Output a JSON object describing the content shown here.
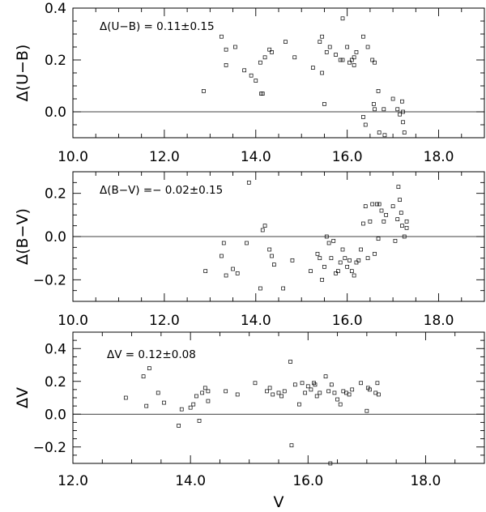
{
  "chart_data": [
    {
      "type": "scatter",
      "ylabel": "Δ(U−B)",
      "xlabel": "",
      "annotation": "Δ(U−B)  =  0.11±0.15",
      "xlim": [
        10.0,
        19.0
      ],
      "ylim": [
        -0.1,
        0.4
      ],
      "xticks": [
        10.0,
        12.0,
        14.0,
        16.0,
        18.0
      ],
      "xtick_labels": [
        "10.0",
        "12.0",
        "14.0",
        "16.0",
        "18.0"
      ],
      "yticks": [
        0.0,
        0.2,
        0.4
      ],
      "ytick_labels": [
        "0.0",
        "0.2",
        "0.4"
      ],
      "zero_line": 0.0,
      "points": [
        [
          12.86,
          0.08
        ],
        [
          13.25,
          0.29
        ],
        [
          13.35,
          0.24
        ],
        [
          13.35,
          0.18
        ],
        [
          13.55,
          0.25
        ],
        [
          13.75,
          0.16
        ],
        [
          13.9,
          0.14
        ],
        [
          14.0,
          0.12
        ],
        [
          14.1,
          0.19
        ],
        [
          14.12,
          0.07
        ],
        [
          14.15,
          0.07
        ],
        [
          14.2,
          0.21
        ],
        [
          14.3,
          0.24
        ],
        [
          14.35,
          0.23
        ],
        [
          14.65,
          0.27
        ],
        [
          14.85,
          0.21
        ],
        [
          15.25,
          0.17
        ],
        [
          15.4,
          0.27
        ],
        [
          15.45,
          0.29
        ],
        [
          15.45,
          0.15
        ],
        [
          15.5,
          0.03
        ],
        [
          15.55,
          0.23
        ],
        [
          15.62,
          0.25
        ],
        [
          15.75,
          0.22
        ],
        [
          15.85,
          0.2
        ],
        [
          15.9,
          0.36
        ],
        [
          15.9,
          0.2
        ],
        [
          16.0,
          0.25
        ],
        [
          16.05,
          0.19
        ],
        [
          16.1,
          0.2
        ],
        [
          16.15,
          0.21
        ],
        [
          16.15,
          0.18
        ],
        [
          16.2,
          0.23
        ],
        [
          16.35,
          0.29
        ],
        [
          16.35,
          -0.02
        ],
        [
          16.4,
          -0.05
        ],
        [
          16.45,
          0.25
        ],
        [
          16.55,
          0.2
        ],
        [
          16.58,
          0.03
        ],
        [
          16.6,
          0.19
        ],
        [
          16.6,
          0.01
        ],
        [
          16.68,
          0.08
        ],
        [
          16.7,
          -0.08
        ],
        [
          16.8,
          0.01
        ],
        [
          16.82,
          -0.09
        ],
        [
          17.0,
          0.05
        ],
        [
          17.1,
          0.01
        ],
        [
          17.15,
          -0.01
        ],
        [
          17.2,
          0.04
        ],
        [
          17.22,
          0.0
        ],
        [
          17.22,
          -0.04
        ],
        [
          17.25,
          -0.08
        ]
      ]
    },
    {
      "type": "scatter",
      "ylabel": "Δ(B−V)",
      "xlabel": "",
      "annotation": "Δ(B−V)  =−  0.02±0.15",
      "xlim": [
        10.0,
        19.0
      ],
      "ylim": [
        -0.3,
        0.3
      ],
      "xticks": [
        10.0,
        12.0,
        14.0,
        16.0,
        18.0
      ],
      "xtick_labels": [
        "10.0",
        "12.0",
        "14.0",
        "16.0",
        "18.0"
      ],
      "yticks": [
        -0.2,
        0.0,
        0.2
      ],
      "ytick_labels": [
        "−0.2",
        "0.0",
        "0.2"
      ],
      "zero_line": 0.0,
      "points": [
        [
          12.9,
          -0.16
        ],
        [
          13.25,
          -0.09
        ],
        [
          13.3,
          -0.03
        ],
        [
          13.35,
          -0.18
        ],
        [
          13.5,
          -0.15
        ],
        [
          13.6,
          -0.17
        ],
        [
          13.8,
          -0.03
        ],
        [
          13.85,
          0.25
        ],
        [
          14.1,
          -0.24
        ],
        [
          14.15,
          0.03
        ],
        [
          14.2,
          0.05
        ],
        [
          14.3,
          -0.06
        ],
        [
          14.35,
          -0.09
        ],
        [
          14.4,
          -0.13
        ],
        [
          14.6,
          -0.24
        ],
        [
          14.8,
          -0.11
        ],
        [
          15.2,
          -0.16
        ],
        [
          15.35,
          -0.08
        ],
        [
          15.4,
          -0.1
        ],
        [
          15.45,
          -0.2
        ],
        [
          15.5,
          -0.14
        ],
        [
          15.55,
          0.0
        ],
        [
          15.6,
          -0.03
        ],
        [
          15.65,
          -0.1
        ],
        [
          15.7,
          -0.02
        ],
        [
          15.75,
          -0.17
        ],
        [
          15.8,
          -0.16
        ],
        [
          15.85,
          -0.12
        ],
        [
          15.9,
          -0.06
        ],
        [
          15.95,
          -0.1
        ],
        [
          16.0,
          -0.14
        ],
        [
          16.05,
          -0.11
        ],
        [
          16.1,
          -0.16
        ],
        [
          16.15,
          -0.18
        ],
        [
          16.2,
          -0.12
        ],
        [
          16.25,
          -0.11
        ],
        [
          16.3,
          -0.06
        ],
        [
          16.35,
          0.06
        ],
        [
          16.4,
          0.14
        ],
        [
          16.45,
          -0.1
        ],
        [
          16.5,
          0.07
        ],
        [
          16.55,
          0.15
        ],
        [
          16.6,
          -0.08
        ],
        [
          16.65,
          0.15
        ],
        [
          16.68,
          -0.01
        ],
        [
          16.7,
          0.15
        ],
        [
          16.75,
          0.12
        ],
        [
          16.8,
          0.07
        ],
        [
          16.85,
          0.1
        ],
        [
          17.0,
          0.14
        ],
        [
          17.05,
          -0.02
        ],
        [
          17.1,
          0.08
        ],
        [
          17.12,
          0.23
        ],
        [
          17.15,
          0.17
        ],
        [
          17.18,
          0.11
        ],
        [
          17.2,
          0.05
        ],
        [
          17.25,
          -0.0
        ],
        [
          17.3,
          0.07
        ],
        [
          17.3,
          0.04
        ]
      ]
    },
    {
      "type": "scatter",
      "ylabel": "ΔV",
      "xlabel": "V",
      "annotation": "ΔV  =  0.12±0.08",
      "xlim": [
        12.0,
        19.0
      ],
      "ylim": [
        -0.3,
        0.5
      ],
      "xticks": [
        12.0,
        14.0,
        16.0,
        18.0
      ],
      "xtick_labels": [
        "12.0",
        "14.0",
        "16.0",
        "18.0"
      ],
      "yticks": [
        -0.2,
        0.0,
        0.2,
        0.4
      ],
      "ytick_labels": [
        "−0.2",
        "0.0",
        "0.2",
        "0.4"
      ],
      "zero_line": 0.0,
      "points": [
        [
          12.9,
          0.1
        ],
        [
          13.2,
          0.23
        ],
        [
          13.25,
          0.05
        ],
        [
          13.3,
          0.28
        ],
        [
          13.45,
          0.13
        ],
        [
          13.55,
          0.07
        ],
        [
          13.8,
          -0.07
        ],
        [
          13.85,
          0.03
        ],
        [
          14.0,
          0.04
        ],
        [
          14.05,
          0.06
        ],
        [
          14.1,
          0.11
        ],
        [
          14.15,
          -0.04
        ],
        [
          14.2,
          0.13
        ],
        [
          14.25,
          0.16
        ],
        [
          14.3,
          0.08
        ],
        [
          14.3,
          0.14
        ],
        [
          14.6,
          0.14
        ],
        [
          14.8,
          0.12
        ],
        [
          15.1,
          0.19
        ],
        [
          15.3,
          0.14
        ],
        [
          15.35,
          0.16
        ],
        [
          15.4,
          0.12
        ],
        [
          15.5,
          0.13
        ],
        [
          15.55,
          0.11
        ],
        [
          15.6,
          0.14
        ],
        [
          15.7,
          0.32
        ],
        [
          15.72,
          -0.19
        ],
        [
          15.78,
          0.18
        ],
        [
          15.85,
          0.06
        ],
        [
          15.9,
          0.19
        ],
        [
          15.95,
          0.13
        ],
        [
          16.0,
          0.17
        ],
        [
          16.05,
          0.15
        ],
        [
          16.1,
          0.19
        ],
        [
          16.12,
          0.18
        ],
        [
          16.15,
          0.11
        ],
        [
          16.2,
          0.13
        ],
        [
          16.3,
          0.23
        ],
        [
          16.35,
          0.14
        ],
        [
          16.38,
          -0.3
        ],
        [
          16.4,
          0.18
        ],
        [
          16.45,
          0.13
        ],
        [
          16.5,
          0.09
        ],
        [
          16.55,
          0.06
        ],
        [
          16.6,
          0.14
        ],
        [
          16.65,
          0.13
        ],
        [
          16.7,
          0.12
        ],
        [
          16.75,
          0.15
        ],
        [
          16.9,
          0.19
        ],
        [
          17.0,
          0.02
        ],
        [
          17.02,
          0.16
        ],
        [
          17.05,
          0.15
        ],
        [
          17.15,
          0.13
        ],
        [
          17.18,
          0.19
        ],
        [
          17.2,
          0.12
        ]
      ]
    }
  ]
}
